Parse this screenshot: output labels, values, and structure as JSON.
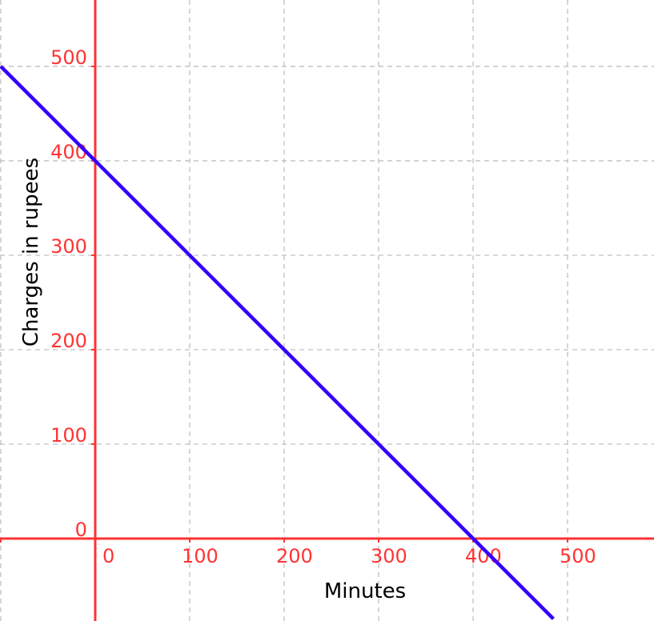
{
  "chart_data": {
    "type": "line",
    "title": "",
    "xlabel": "Minutes",
    "ylabel": "Charges in rupees",
    "xlim": [
      -100.8,
      591.5
    ],
    "ylim": [
      -87.3,
      570.3
    ],
    "grid": true,
    "x_ticks": [
      0,
      100,
      200,
      300,
      400,
      500
    ],
    "y_ticks": [
      0,
      100,
      200,
      300,
      400,
      500
    ],
    "x_tick_labels": [
      "0",
      "100",
      "200",
      "300",
      "400",
      "500"
    ],
    "y_tick_labels": [
      "0",
      "100",
      "200",
      "300",
      "400",
      "500"
    ],
    "series": [
      {
        "x": [
          -100,
          485
        ],
        "y": [
          500,
          -85
        ],
        "color": "#3300ff"
      }
    ],
    "colors": {
      "axes": "#ff3333",
      "ticks": "#ff3333",
      "grid": "#c0c0c0",
      "labels": "#000000"
    }
  }
}
